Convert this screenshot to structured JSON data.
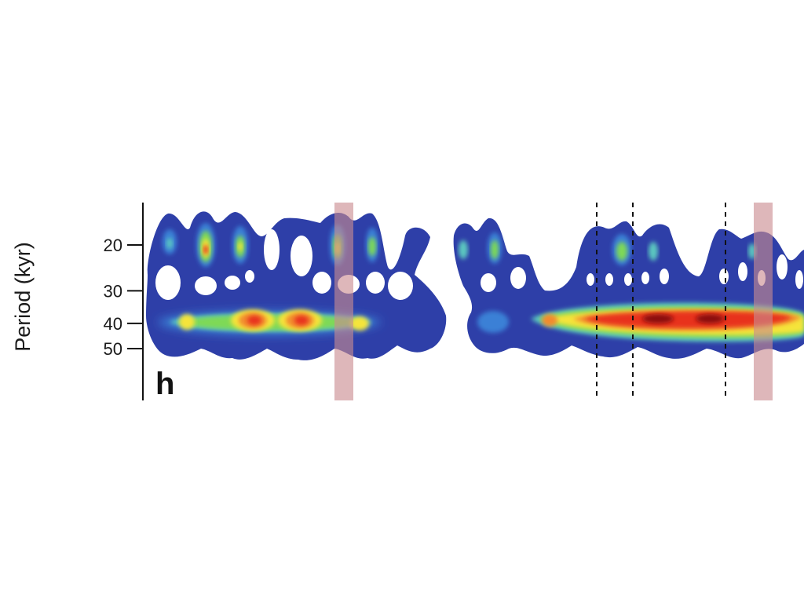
{
  "chart_data": {
    "type": "heatmap",
    "panel_label": "h",
    "ylabel": "Period (kyr)",
    "y_scale": "log",
    "y_ticks": [
      20,
      30,
      40,
      50
    ],
    "y_tick_labels": [
      "20",
      "30",
      "40",
      "50"
    ],
    "ylim": [
      15,
      65
    ],
    "grid": false,
    "colormap": [
      "#2e3fa8",
      "#3a80d6",
      "#5cc8c0",
      "#7ed957",
      "#f5e43a",
      "#f28a2e",
      "#e8301e",
      "#8a1010"
    ],
    "power_bands": [
      {
        "period": 40,
        "description": "strong, continuous; peaks red/dark red in right segment"
      },
      {
        "period": 20,
        "description": "intermittent lobes, moderate power"
      }
    ],
    "highlighted_intervals": 2,
    "dashed_markers": 3
  }
}
